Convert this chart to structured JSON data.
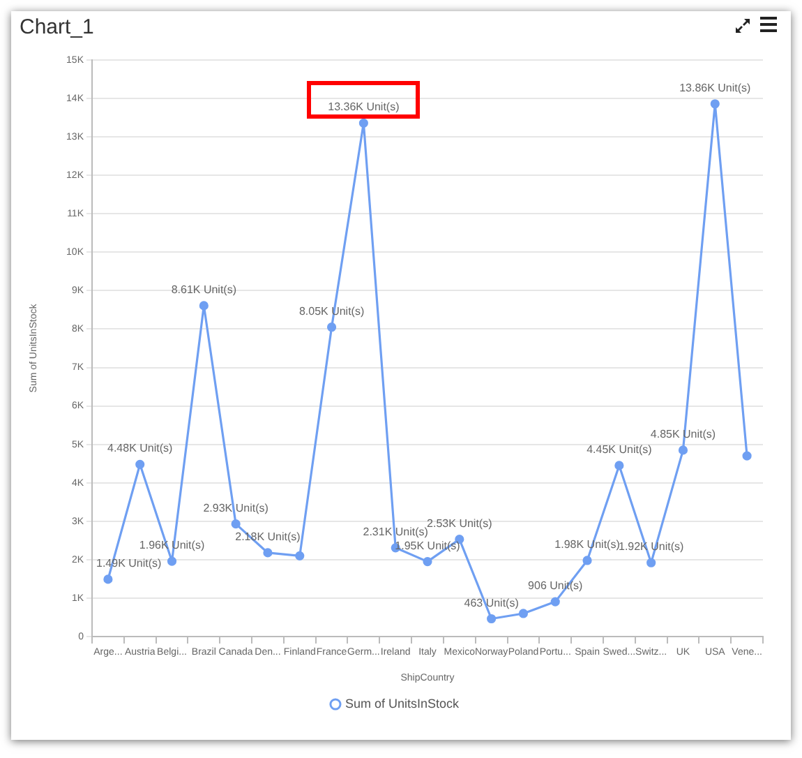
{
  "chart_data": {
    "type": "line",
    "title": "Chart_1",
    "xlabel": "ShipCountry",
    "ylabel": "Sum of UnitsInStock",
    "categories": [
      "Arge...",
      "Austria",
      "Belgi...",
      "Brazil",
      "Canada",
      "Den...",
      "Finland",
      "France",
      "Germ...",
      "Ireland",
      "Italy",
      "Mexico",
      "Norway",
      "Poland",
      "Portu...",
      "Spain",
      "Swed...",
      "Switz...",
      "UK",
      "USA",
      "Vene..."
    ],
    "series": [
      {
        "name": "Sum of UnitsInStock",
        "color": "#6f9ff2",
        "values": [
          1490,
          4480,
          1960,
          8610,
          2930,
          2180,
          2100,
          8050,
          13360,
          2310,
          1950,
          2530,
          463,
          600,
          906,
          1980,
          4450,
          1920,
          4850,
          13860,
          4700
        ],
        "value_labels": [
          "1.49K Unit(s)",
          "4.48K Unit(s)",
          "1.96K Unit(s)",
          "8.61K Unit(s)",
          "2.93K Unit(s)",
          "2.18K Unit(s)",
          null,
          "8.05K Unit(s)",
          "13.36K Unit(s)",
          "2.31K Unit(s)",
          "1.95K Unit(s)",
          "2.53K Unit(s)",
          "463 Unit(s)",
          null,
          "906 Unit(s)",
          "1.98K Unit(s)",
          "4.45K Unit(s)",
          "1.92K Unit(s)",
          "4.85K Unit(s)",
          "13.86K Unit(s)",
          null
        ]
      }
    ],
    "ylim": [
      0,
      15000
    ],
    "yticks": [
      0,
      {
        "value": 1000,
        "label": "1K"
      },
      {
        "value": 2000,
        "label": "2K"
      },
      {
        "value": 3000,
        "label": "3K"
      },
      {
        "value": 4000,
        "label": "4K"
      },
      {
        "value": 5000,
        "label": "5K"
      },
      {
        "value": 6000,
        "label": "6K"
      },
      {
        "value": 7000,
        "label": "7K"
      },
      {
        "value": 8000,
        "label": "8K"
      },
      {
        "value": 9000,
        "label": "9K"
      },
      {
        "value": 10000,
        "label": "10K"
      },
      {
        "value": 11000,
        "label": "11K"
      },
      {
        "value": 12000,
        "label": "12K"
      },
      {
        "value": 13000,
        "label": "13K"
      },
      {
        "value": 14000,
        "label": "14K"
      },
      {
        "value": 15000,
        "label": "15K"
      }
    ],
    "grid": "y",
    "legend": "bottom",
    "marker": "circle",
    "line_style": "solid"
  }
}
